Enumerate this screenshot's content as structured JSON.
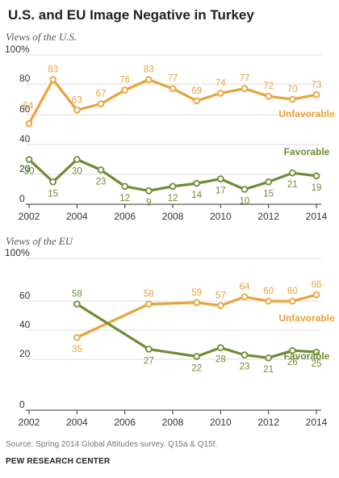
{
  "title": "U.S. and EU Image Negative in Turkey",
  "footer": {
    "source": "Source: Spring 2014 Global Attitudes survey. Q15a & Q15f.",
    "org": "PEW RESEARCH CENTER"
  },
  "colors": {
    "unfavorable": "#E8A33C",
    "favorable": "#6E8C35",
    "grid": "#dddddd",
    "axis": "#333333"
  },
  "chart_data": [
    {
      "type": "line",
      "subtitle": "Views of the U.S.",
      "xlim": [
        2002,
        2014
      ],
      "ylim": [
        0,
        100
      ],
      "xticks": [
        2002,
        2004,
        2006,
        2008,
        2010,
        2012,
        2014
      ],
      "yticks": [
        0,
        20,
        40,
        60,
        80,
        100
      ],
      "ytick_labels": [
        "0",
        "20",
        "40",
        "60",
        "80",
        "100%"
      ],
      "grid": true,
      "series": [
        {
          "name": "Unfavorable",
          "color": "#E8A33C",
          "x": [
            2002,
            2003,
            2004,
            2005,
            2006,
            2007,
            2008,
            2009,
            2010,
            2011,
            2012,
            2013,
            2014
          ],
          "y": [
            54,
            83,
            63,
            67,
            76,
            83,
            77,
            69,
            74,
            77,
            72,
            70,
            73
          ]
        },
        {
          "name": "Favorable",
          "color": "#6E8C35",
          "x": [
            2002,
            2003,
            2004,
            2005,
            2006,
            2007,
            2008,
            2009,
            2010,
            2011,
            2012,
            2013,
            2014
          ],
          "y": [
            30,
            15,
            30,
            23,
            12,
            9,
            12,
            14,
            17,
            10,
            15,
            21,
            19
          ]
        }
      ]
    },
    {
      "type": "line",
      "subtitle": "Views of the EU",
      "xlim": [
        2002,
        2014
      ],
      "ylim": [
        0,
        100
      ],
      "xticks": [
        2002,
        2004,
        2006,
        2008,
        2010,
        2012,
        2014
      ],
      "yticks": [
        0,
        20,
        40,
        60,
        100
      ],
      "ytick_labels": [
        "0",
        "20",
        "40",
        "60",
        "100%"
      ],
      "grid": true,
      "series": [
        {
          "name": "Unfavorable",
          "color": "#E8A33C",
          "x": [
            2004,
            2007,
            2009,
            2010,
            2011,
            2012,
            2013,
            2014
          ],
          "y": [
            35,
            58,
            59,
            57,
            64,
            60,
            60,
            66
          ]
        },
        {
          "name": "Favorable",
          "color": "#6E8C35",
          "x": [
            2004,
            2007,
            2009,
            2010,
            2011,
            2012,
            2013,
            2014
          ],
          "y": [
            58,
            27,
            22,
            28,
            23,
            21,
            26,
            25
          ]
        }
      ]
    }
  ]
}
